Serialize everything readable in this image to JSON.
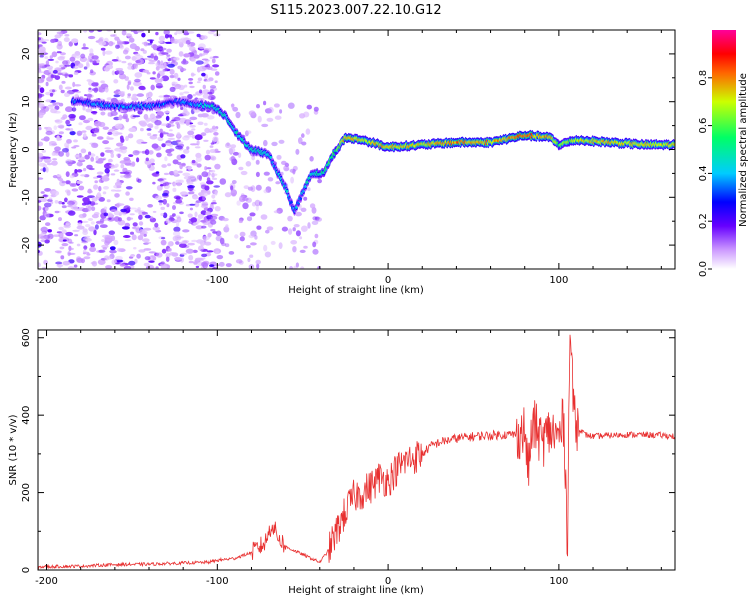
{
  "title": "S115.2023.007.22.10.G12",
  "colors": {
    "snr_line": "#e83030",
    "axes": "#000000"
  },
  "chart_data": [
    {
      "type": "heatmap",
      "xlabel": "Height of straight line (km)",
      "ylabel": "Frequency (Hz)",
      "xlim": [
        -205,
        168
      ],
      "ylim": [
        -25,
        25
      ],
      "xticks": [
        -200,
        -100,
        0,
        100
      ],
      "yticks": [
        -20,
        -10,
        0,
        10,
        20
      ],
      "colorbar": {
        "label": "Normalized spectral amplitude",
        "range": [
          0,
          1
        ],
        "ticks": [
          0.0,
          0.2,
          0.4,
          0.6,
          0.8
        ],
        "colormap": "rainbow (white-violet-blue-cyan-green-yellow-red-magenta)"
      },
      "ridge": [
        {
          "x": -180,
          "f": 10,
          "amp": 0.3
        },
        {
          "x": -160,
          "f": 9,
          "amp": 0.35
        },
        {
          "x": -140,
          "f": 9,
          "amp": 0.35
        },
        {
          "x": -125,
          "f": 10,
          "amp": 0.3
        },
        {
          "x": -102,
          "f": 9,
          "amp": 0.45
        },
        {
          "x": -95,
          "f": 7,
          "amp": 0.45
        },
        {
          "x": -88,
          "f": 3,
          "amp": 0.45
        },
        {
          "x": -80,
          "f": 0,
          "amp": 0.45
        },
        {
          "x": -70,
          "f": -1,
          "amp": 0.4
        },
        {
          "x": -60,
          "f": -8,
          "amp": 0.4
        },
        {
          "x": -55,
          "f": -13,
          "amp": 0.35
        },
        {
          "x": -45,
          "f": -5,
          "amp": 0.45
        },
        {
          "x": -38,
          "f": -5,
          "amp": 0.5
        },
        {
          "x": -32,
          "f": -1,
          "amp": 0.55
        },
        {
          "x": -25,
          "f": 2.5,
          "amp": 0.75
        },
        {
          "x": -15,
          "f": 2,
          "amp": 0.7
        },
        {
          "x": 0,
          "f": 0.5,
          "amp": 0.75
        },
        {
          "x": 20,
          "f": 1,
          "amp": 0.7
        },
        {
          "x": 40,
          "f": 1.5,
          "amp": 0.8
        },
        {
          "x": 60,
          "f": 1.5,
          "amp": 0.75
        },
        {
          "x": 80,
          "f": 3,
          "amp": 0.8
        },
        {
          "x": 95,
          "f": 2.5,
          "amp": 0.75
        },
        {
          "x": 100,
          "f": 1,
          "amp": 0.6
        },
        {
          "x": 110,
          "f": 2,
          "amp": 0.7
        },
        {
          "x": 130,
          "f": 1.5,
          "amp": 0.75
        },
        {
          "x": 150,
          "f": 1,
          "amp": 0.7
        },
        {
          "x": 168,
          "f": 1,
          "amp": 0.7
        }
      ]
    },
    {
      "type": "line",
      "xlabel": "Height of straight line (km)",
      "ylabel": "SNR (10 * v/v)",
      "xlim": [
        -205,
        168
      ],
      "ylim": [
        0,
        620
      ],
      "xticks": [
        -200,
        -100,
        0,
        100
      ],
      "yticks": [
        0,
        200,
        400,
        600
      ],
      "series": [
        {
          "x": [
            -205,
            -180,
            -160,
            -140,
            -120,
            -105,
            -100,
            -90,
            -80,
            -72,
            -68,
            -65,
            -60,
            -50,
            -40,
            -35,
            -30,
            -25,
            -20,
            -15,
            -10,
            -5,
            0,
            5,
            10,
            15,
            20,
            25,
            30,
            40,
            50,
            60,
            70,
            75,
            80,
            82,
            85,
            90,
            95,
            100,
            103,
            105,
            106,
            107,
            108,
            110,
            115,
            120,
            140,
            160,
            168
          ],
          "values": [
            8,
            10,
            14,
            15,
            18,
            20,
            25,
            30,
            45,
            70,
            120,
            90,
            60,
            40,
            20,
            50,
            100,
            150,
            190,
            200,
            215,
            240,
            230,
            260,
            280,
            290,
            300,
            320,
            330,
            340,
            345,
            348,
            350,
            350,
            360,
            260,
            380,
            330,
            360,
            340,
            390,
            60,
            500,
            620,
            460,
            380,
            350,
            345,
            350,
            348,
            345
          ]
        }
      ]
    }
  ]
}
